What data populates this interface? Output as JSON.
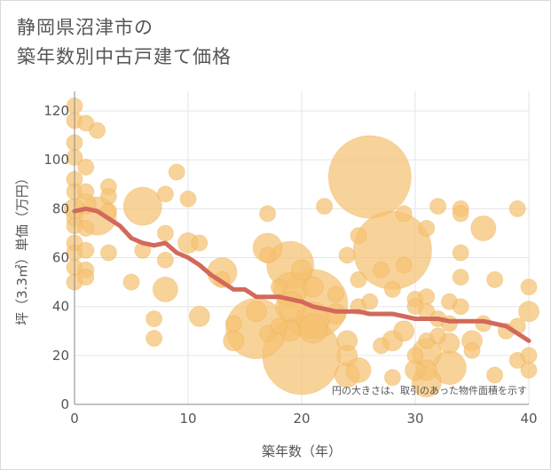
{
  "title_lines": [
    "静岡県沼津市の",
    "築年数別中古戸建て価格"
  ],
  "colors": {
    "bubble": "#f5c272",
    "bubble_stroke": "#ecad4f",
    "line": "#d2695a",
    "grid": "#e6e6e6",
    "axis": "#888888",
    "plot_bg": "#ffffff"
  },
  "chart_data": {
    "type": "scatter",
    "subtype": "bubble_with_trend_line",
    "xlabel": "築年数（年）",
    "ylabel": "坪（3.3㎡）単価（万円）",
    "xlim": [
      0,
      40
    ],
    "ylim": [
      0,
      128
    ],
    "xticks": [
      "0",
      "10",
      "20",
      "30",
      "40"
    ],
    "yticks": [
      "0",
      "20",
      "40",
      "60",
      "80",
      "100",
      "120"
    ],
    "grid": true,
    "note": "円の大きさは、取引のあった物件面積を示す",
    "trend_line": {
      "x": [
        0,
        1,
        2,
        3,
        4,
        5,
        6,
        7,
        8,
        9,
        10,
        11,
        12,
        13,
        14,
        15,
        16,
        17,
        18,
        19,
        20,
        21,
        22,
        23,
        24,
        25,
        26,
        27,
        28,
        29,
        30,
        31,
        32,
        33,
        34,
        35,
        36,
        37,
        38,
        39,
        40
      ],
      "y": [
        79,
        80,
        79,
        76,
        73,
        68,
        66,
        65,
        66,
        62,
        60,
        57,
        53,
        50,
        47,
        47,
        44,
        44,
        44,
        43,
        42,
        40,
        39,
        38,
        38,
        38,
        37,
        37,
        37,
        36,
        35,
        35,
        35,
        34,
        34,
        34,
        34,
        33,
        32,
        29,
        26
      ]
    },
    "points": [
      {
        "x": 0,
        "y": 122,
        "s": 2
      },
      {
        "x": 0,
        "y": 116,
        "s": 2
      },
      {
        "x": 0,
        "y": 107,
        "s": 2
      },
      {
        "x": 0,
        "y": 101,
        "s": 2
      },
      {
        "x": 0,
        "y": 92,
        "s": 2
      },
      {
        "x": 0,
        "y": 87,
        "s": 2
      },
      {
        "x": 0,
        "y": 80,
        "s": 3
      },
      {
        "x": 0,
        "y": 76,
        "s": 2
      },
      {
        "x": 0,
        "y": 73,
        "s": 2
      },
      {
        "x": 0,
        "y": 66,
        "s": 2
      },
      {
        "x": 0,
        "y": 62,
        "s": 2
      },
      {
        "x": 0,
        "y": 56,
        "s": 2
      },
      {
        "x": 0,
        "y": 50,
        "s": 2
      },
      {
        "x": 1,
        "y": 115,
        "s": 2
      },
      {
        "x": 1,
        "y": 97,
        "s": 2
      },
      {
        "x": 1,
        "y": 87,
        "s": 2
      },
      {
        "x": 1,
        "y": 82,
        "s": 3
      },
      {
        "x": 1,
        "y": 72,
        "s": 2
      },
      {
        "x": 1,
        "y": 63,
        "s": 2
      },
      {
        "x": 1,
        "y": 55,
        "s": 2
      },
      {
        "x": 1,
        "y": 52,
        "s": 2
      },
      {
        "x": 2,
        "y": 112,
        "s": 2
      },
      {
        "x": 2,
        "y": 77,
        "s": 7
      },
      {
        "x": 3,
        "y": 89,
        "s": 2
      },
      {
        "x": 3,
        "y": 85,
        "s": 2
      },
      {
        "x": 3,
        "y": 79,
        "s": 2
      },
      {
        "x": 3,
        "y": 62,
        "s": 2
      },
      {
        "x": 5,
        "y": 50,
        "s": 2
      },
      {
        "x": 6,
        "y": 81,
        "s": 7
      },
      {
        "x": 6,
        "y": 63,
        "s": 2
      },
      {
        "x": 7,
        "y": 35,
        "s": 2
      },
      {
        "x": 7,
        "y": 27,
        "s": 2
      },
      {
        "x": 8,
        "y": 86,
        "s": 2
      },
      {
        "x": 8,
        "y": 70,
        "s": 2
      },
      {
        "x": 8,
        "y": 59,
        "s": 2
      },
      {
        "x": 8,
        "y": 47,
        "s": 4
      },
      {
        "x": 9,
        "y": 95,
        "s": 2
      },
      {
        "x": 10,
        "y": 84,
        "s": 2
      },
      {
        "x": 10,
        "y": 66,
        "s": 3
      },
      {
        "x": 11,
        "y": 66,
        "s": 2
      },
      {
        "x": 11,
        "y": 36,
        "s": 3
      },
      {
        "x": 13,
        "y": 54,
        "s": 5
      },
      {
        "x": 13,
        "y": 51,
        "s": 2
      },
      {
        "x": 14,
        "y": 33,
        "s": 2
      },
      {
        "x": 14,
        "y": 26,
        "s": 3
      },
      {
        "x": 16,
        "y": 31,
        "s": 12
      },
      {
        "x": 16,
        "y": 38,
        "s": 3
      },
      {
        "x": 17,
        "y": 64,
        "s": 5
      },
      {
        "x": 17,
        "y": 78,
        "s": 2
      },
      {
        "x": 17,
        "y": 61,
        "s": 2
      },
      {
        "x": 17,
        "y": 29,
        "s": 2
      },
      {
        "x": 18,
        "y": 32,
        "s": 2
      },
      {
        "x": 18,
        "y": 48,
        "s": 2
      },
      {
        "x": 19,
        "y": 57,
        "s": 9
      },
      {
        "x": 19,
        "y": 47,
        "s": 6
      },
      {
        "x": 19,
        "y": 40,
        "s": 5
      },
      {
        "x": 19,
        "y": 30,
        "s": 3
      },
      {
        "x": 20,
        "y": 20,
        "s": 16
      },
      {
        "x": 20,
        "y": 55,
        "s": 3
      },
      {
        "x": 21,
        "y": 41,
        "s": 14
      },
      {
        "x": 21,
        "y": 35,
        "s": 6
      },
      {
        "x": 21,
        "y": 31,
        "s": 5
      },
      {
        "x": 21,
        "y": 48,
        "s": 3
      },
      {
        "x": 22,
        "y": 81,
        "s": 2
      },
      {
        "x": 23,
        "y": 37,
        "s": 3
      },
      {
        "x": 23,
        "y": 45,
        "s": 2
      },
      {
        "x": 24,
        "y": 26,
        "s": 3
      },
      {
        "x": 24,
        "y": 20,
        "s": 3
      },
      {
        "x": 24,
        "y": 12,
        "s": 4
      },
      {
        "x": 24,
        "y": 61,
        "s": 2
      },
      {
        "x": 25,
        "y": 69,
        "s": 2
      },
      {
        "x": 25,
        "y": 51,
        "s": 2
      },
      {
        "x": 25,
        "y": 40,
        "s": 2
      },
      {
        "x": 25,
        "y": 14,
        "s": 4
      },
      {
        "x": 26,
        "y": 93,
        "s": 17
      },
      {
        "x": 26,
        "y": 42,
        "s": 2
      },
      {
        "x": 27,
        "y": 55,
        "s": 2
      },
      {
        "x": 27,
        "y": 24,
        "s": 2
      },
      {
        "x": 28,
        "y": 63,
        "s": 16
      },
      {
        "x": 28,
        "y": 47,
        "s": 2
      },
      {
        "x": 28,
        "y": 26,
        "s": 3
      },
      {
        "x": 28,
        "y": 11,
        "s": 2
      },
      {
        "x": 29,
        "y": 78,
        "s": 2
      },
      {
        "x": 29,
        "y": 57,
        "s": 2
      },
      {
        "x": 29,
        "y": 30,
        "s": 3
      },
      {
        "x": 30,
        "y": 43,
        "s": 2
      },
      {
        "x": 30,
        "y": 40,
        "s": 2
      },
      {
        "x": 30,
        "y": 20,
        "s": 2
      },
      {
        "x": 30,
        "y": 14,
        "s": 3
      },
      {
        "x": 31,
        "y": 72,
        "s": 2
      },
      {
        "x": 31,
        "y": 44,
        "s": 2
      },
      {
        "x": 31,
        "y": 38,
        "s": 2
      },
      {
        "x": 31,
        "y": 26,
        "s": 2
      },
      {
        "x": 31,
        "y": 21,
        "s": 5
      },
      {
        "x": 31,
        "y": 9,
        "s": 5
      },
      {
        "x": 31,
        "y": 14,
        "s": 3
      },
      {
        "x": 32,
        "y": 81,
        "s": 2
      },
      {
        "x": 32,
        "y": 35,
        "s": 2
      },
      {
        "x": 32,
        "y": 28,
        "s": 2
      },
      {
        "x": 33,
        "y": 15,
        "s": 6
      },
      {
        "x": 33,
        "y": 42,
        "s": 2
      },
      {
        "x": 33,
        "y": 33,
        "s": 2
      },
      {
        "x": 33,
        "y": 25,
        "s": 3
      },
      {
        "x": 34,
        "y": 80,
        "s": 2
      },
      {
        "x": 34,
        "y": 78,
        "s": 2
      },
      {
        "x": 34,
        "y": 62,
        "s": 2
      },
      {
        "x": 34,
        "y": 52,
        "s": 2
      },
      {
        "x": 34,
        "y": 40,
        "s": 2
      },
      {
        "x": 35,
        "y": 26,
        "s": 3
      },
      {
        "x": 35,
        "y": 22,
        "s": 2
      },
      {
        "x": 36,
        "y": 72,
        "s": 4
      },
      {
        "x": 36,
        "y": 33,
        "s": 2
      },
      {
        "x": 37,
        "y": 51,
        "s": 2
      },
      {
        "x": 37,
        "y": 12,
        "s": 2
      },
      {
        "x": 38,
        "y": 30,
        "s": 2
      },
      {
        "x": 39,
        "y": 80,
        "s": 2
      },
      {
        "x": 39,
        "y": 32,
        "s": 2
      },
      {
        "x": 39,
        "y": 18,
        "s": 2
      },
      {
        "x": 40,
        "y": 48,
        "s": 2
      },
      {
        "x": 40,
        "y": 38,
        "s": 3
      },
      {
        "x": 40,
        "y": 20,
        "s": 2
      },
      {
        "x": 40,
        "y": 14,
        "s": 2
      }
    ]
  }
}
